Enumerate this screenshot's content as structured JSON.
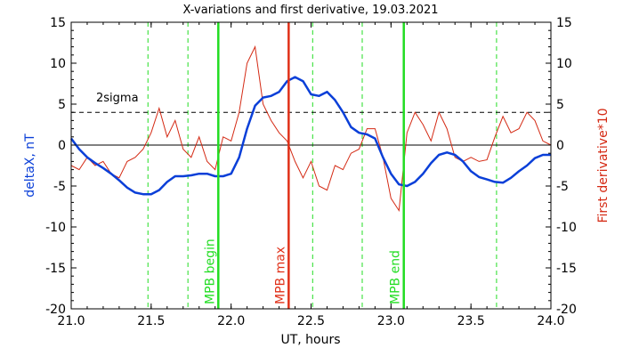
{
  "chart_data": {
    "type": "line",
    "title": "X-variations and first derivative, 19.03.2021",
    "xlabel": "UT, hours",
    "ylabel_left": "deltaX, nT",
    "ylabel_right": "First derivative*10",
    "xlim": [
      21.0,
      24.0
    ],
    "ylim_left": [
      -20,
      15
    ],
    "ylim_right": [
      -20,
      15
    ],
    "x_ticks": [
      "21.0",
      "21.5",
      "22.0",
      "22.5",
      "23.0",
      "23.5",
      "24.0"
    ],
    "y_ticks": [
      "15",
      "10",
      "5",
      "0",
      "-5",
      "-10",
      "-15",
      "-20"
    ],
    "colors": {
      "deltaX": "#0a3fd8",
      "derivative": "#d42a14",
      "mpb_begin_end": "#22dd22",
      "mpb_max": "#e03018",
      "minute_lines": "#22dd22"
    },
    "sigma_label": "2sigma",
    "sigma_level": 4,
    "vertical_markers": [
      {
        "x": 21.92,
        "label": "MPB begin",
        "color": "#22dd22"
      },
      {
        "x": 22.36,
        "label": "MPB max",
        "color": "#e03018"
      },
      {
        "x": 23.08,
        "label": "MPB end",
        "color": "#22dd22"
      }
    ],
    "dashed_verticals": [
      21.48,
      21.73,
      22.51,
      22.82,
      23.66
    ],
    "series": [
      {
        "name": "deltaX",
        "x": [
          21.0,
          21.05,
          21.1,
          21.15,
          21.2,
          21.25,
          21.3,
          21.35,
          21.4,
          21.45,
          21.5,
          21.55,
          21.6,
          21.65,
          21.7,
          21.75,
          21.8,
          21.85,
          21.9,
          21.95,
          22.0,
          22.05,
          22.1,
          22.15,
          22.2,
          22.25,
          22.3,
          22.35,
          22.4,
          22.45,
          22.5,
          22.55,
          22.6,
          22.65,
          22.7,
          22.75,
          22.8,
          22.85,
          22.9,
          22.95,
          23.0,
          23.05,
          23.1,
          23.15,
          23.2,
          23.25,
          23.3,
          23.35,
          23.4,
          23.45,
          23.5,
          23.55,
          23.6,
          23.65,
          23.7,
          23.75,
          23.8,
          23.85,
          23.9,
          23.95,
          24.0
        ],
        "values": [
          0.8,
          -0.5,
          -1.5,
          -2.2,
          -2.8,
          -3.5,
          -4.3,
          -5.2,
          -5.8,
          -6.0,
          -6.0,
          -5.5,
          -4.5,
          -3.8,
          -3.8,
          -3.7,
          -3.5,
          -3.5,
          -3.8,
          -3.8,
          -3.5,
          -1.5,
          2.0,
          4.8,
          5.8,
          6.0,
          6.5,
          7.8,
          8.3,
          7.8,
          6.2,
          6.0,
          6.5,
          5.5,
          4.0,
          2.2,
          1.5,
          1.3,
          0.8,
          -1.5,
          -3.5,
          -4.8,
          -5.0,
          -4.5,
          -3.5,
          -2.2,
          -1.2,
          -0.9,
          -1.2,
          -2.0,
          -3.2,
          -3.9,
          -4.2,
          -4.5,
          -4.6,
          -4.0,
          -3.2,
          -2.5,
          -1.6,
          -1.2,
          -1.2
        ]
      },
      {
        "name": "derivative",
        "x": [
          21.0,
          21.05,
          21.1,
          21.15,
          21.2,
          21.25,
          21.3,
          21.35,
          21.4,
          21.45,
          21.5,
          21.55,
          21.6,
          21.65,
          21.7,
          21.75,
          21.8,
          21.85,
          21.9,
          21.95,
          22.0,
          22.05,
          22.1,
          22.15,
          22.2,
          22.25,
          22.3,
          22.35,
          22.4,
          22.45,
          22.5,
          22.55,
          22.6,
          22.65,
          22.7,
          22.75,
          22.8,
          22.85,
          22.9,
          22.95,
          23.0,
          23.05,
          23.1,
          23.15,
          23.2,
          23.25,
          23.3,
          23.35,
          23.4,
          23.45,
          23.5,
          23.55,
          23.6,
          23.65,
          23.7,
          23.75,
          23.8,
          23.85,
          23.9,
          23.95,
          24.0
        ],
        "values": [
          -2.5,
          -3.0,
          -1.5,
          -2.5,
          -2.0,
          -3.5,
          -4.0,
          -2.0,
          -1.5,
          -0.5,
          1.5,
          4.5,
          1.0,
          3.0,
          -0.5,
          -1.5,
          1.0,
          -2.0,
          -3.0,
          1.0,
          0.5,
          4.0,
          10.0,
          12.0,
          5.0,
          3.0,
          1.5,
          0.5,
          -2.0,
          -4.0,
          -2.0,
          -5.0,
          -5.5,
          -2.5,
          -3.0,
          -1.0,
          -0.5,
          2.0,
          2.0,
          -1.5,
          -6.5,
          -8.0,
          1.5,
          4.0,
          2.5,
          0.5,
          4.0,
          2.0,
          -1.5,
          -2.0,
          -1.5,
          -2.0,
          -1.8,
          1.0,
          3.5,
          1.5,
          2.0,
          4.0,
          3.0,
          0.5,
          0.0
        ]
      }
    ]
  }
}
